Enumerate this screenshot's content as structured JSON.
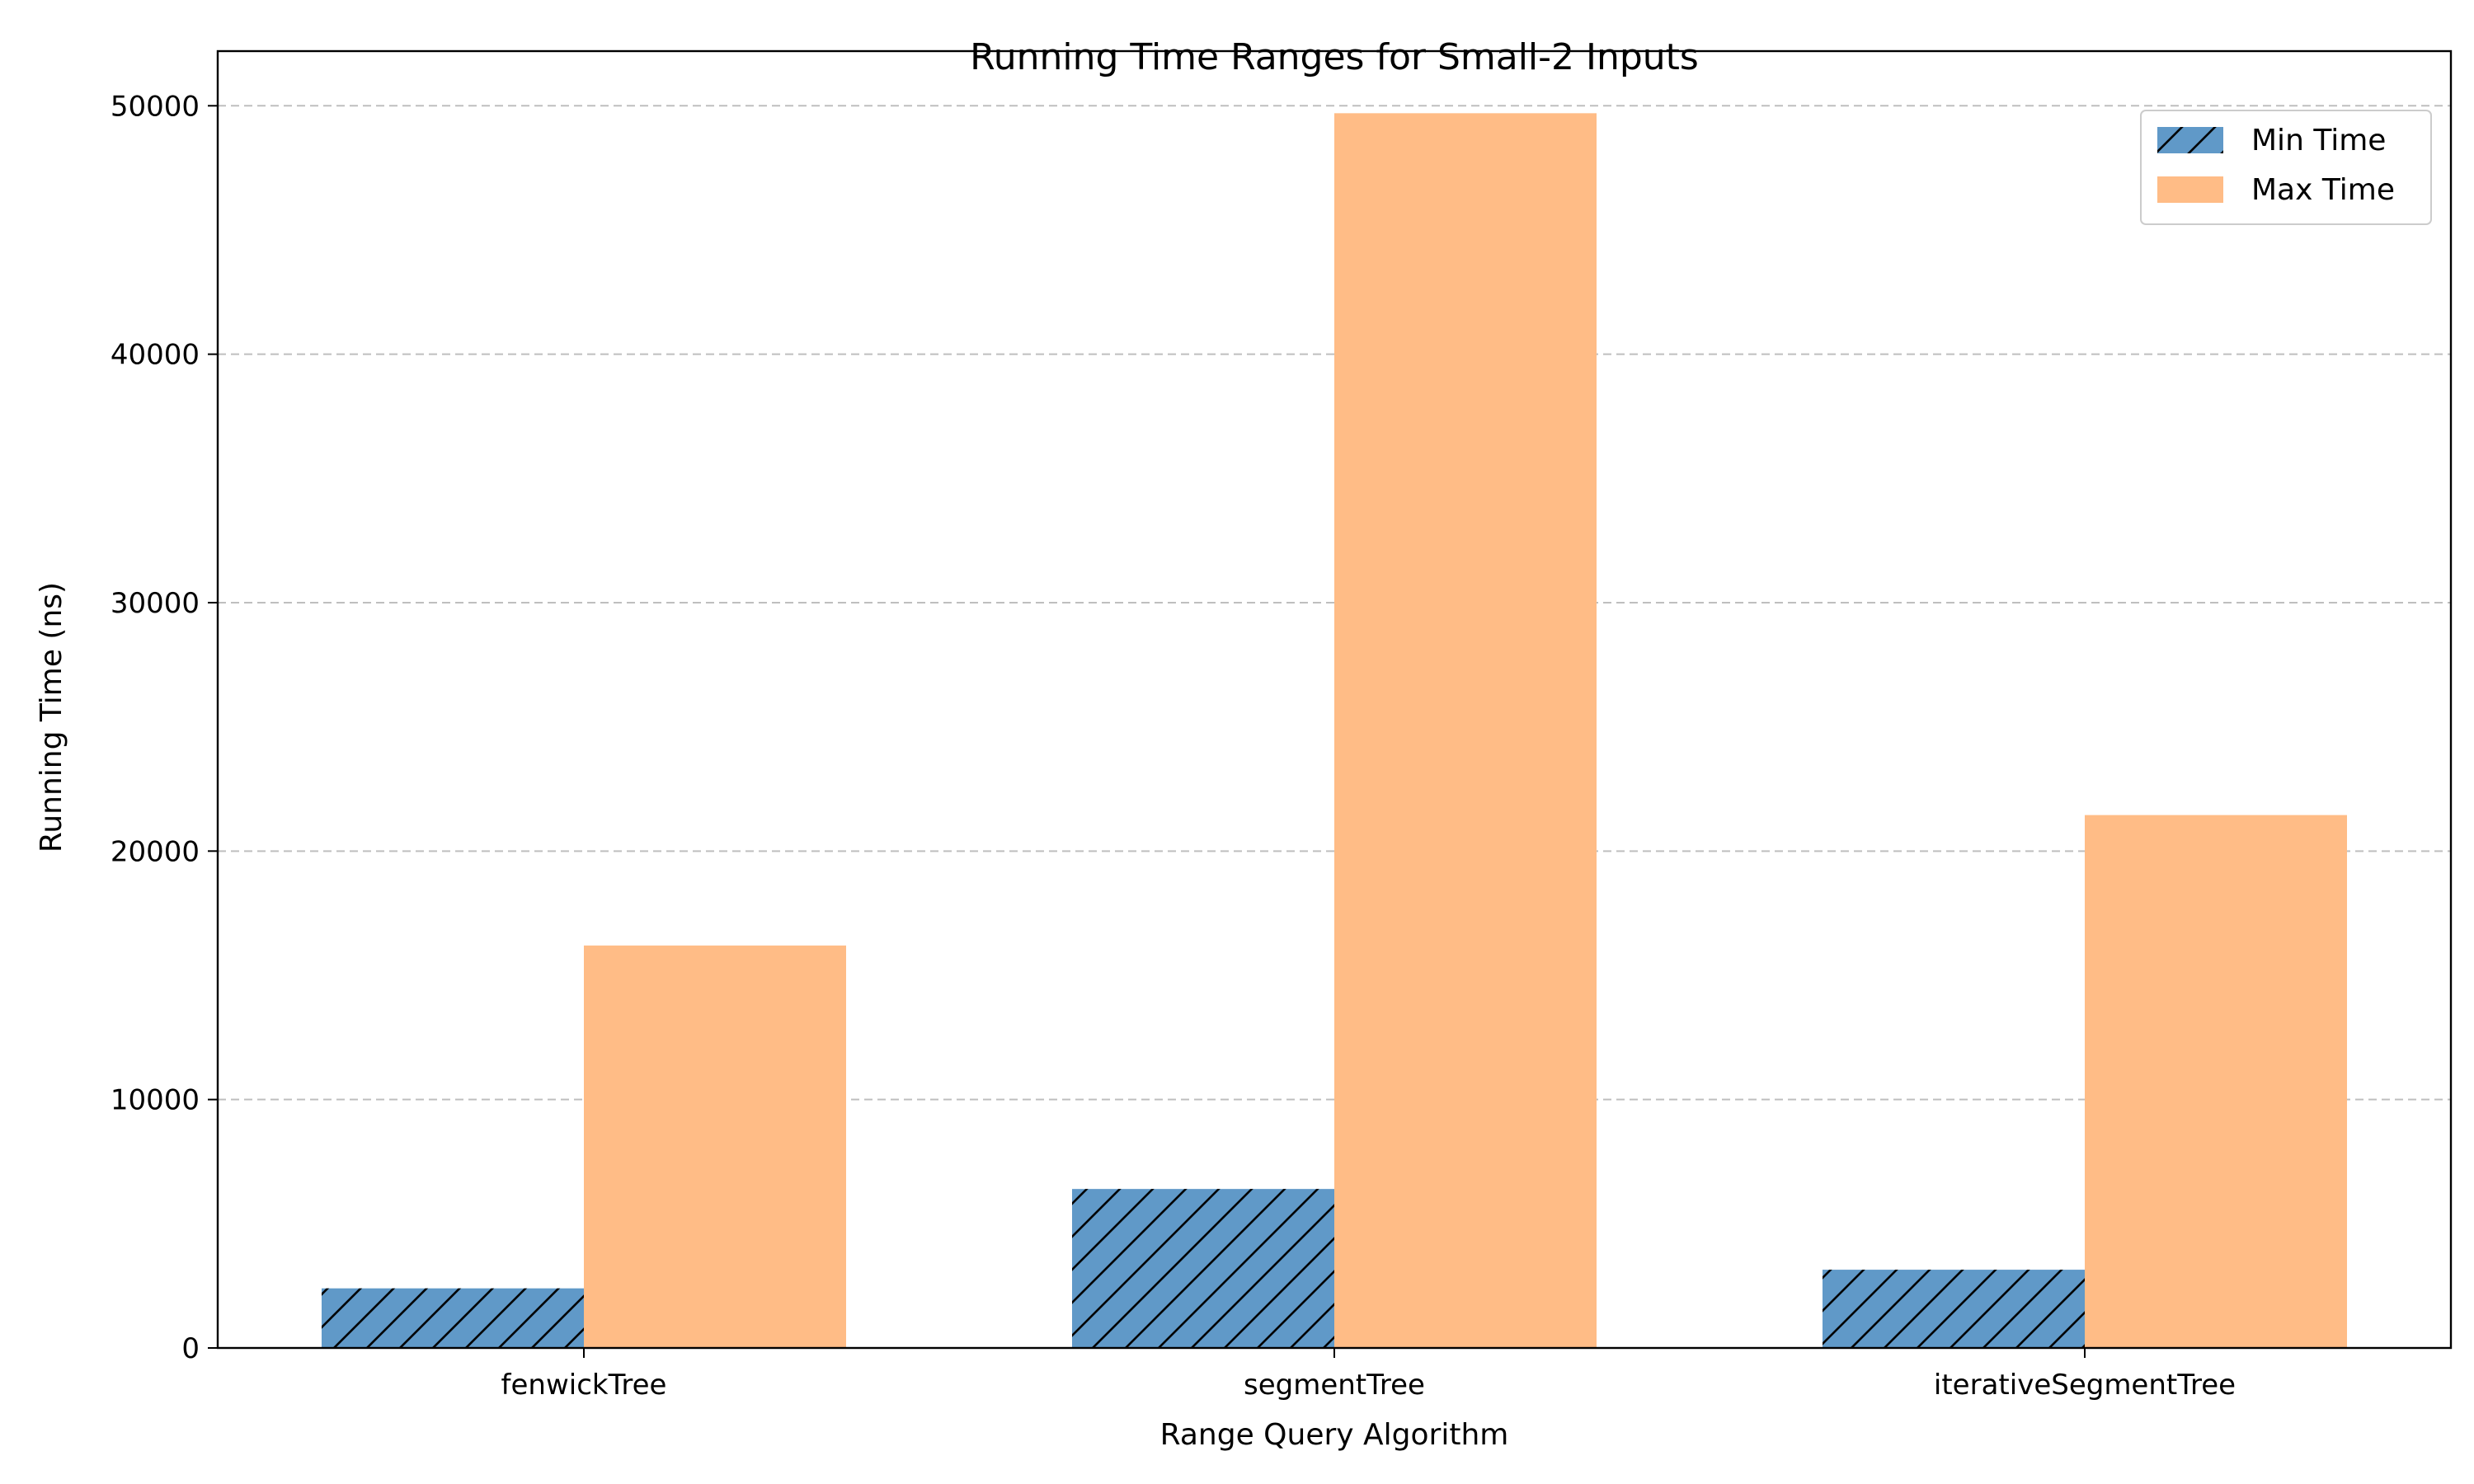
{
  "chart_data": {
    "type": "bar",
    "title": "Running Time Ranges for Small-2 Inputs",
    "xlabel": "Range Query Algorithm",
    "ylabel": "Running Time (ns)",
    "categories": [
      "fenwickTree",
      "segmentTree",
      "iterativeSegmentTree"
    ],
    "series": [
      {
        "name": "Min Time",
        "values": [
          2400,
          6400,
          3150
        ],
        "color": "#6099c8",
        "hatch": "diagonal"
      },
      {
        "name": "Max Time",
        "values": [
          16200,
          49700,
          21450
        ],
        "color": "#ffbc86",
        "hatch": "none"
      }
    ],
    "ylim": [
      0,
      52200
    ],
    "yticks": [
      0,
      10000,
      20000,
      30000,
      40000,
      50000
    ],
    "grid": "y-dashed",
    "legend_position": "top-right"
  }
}
